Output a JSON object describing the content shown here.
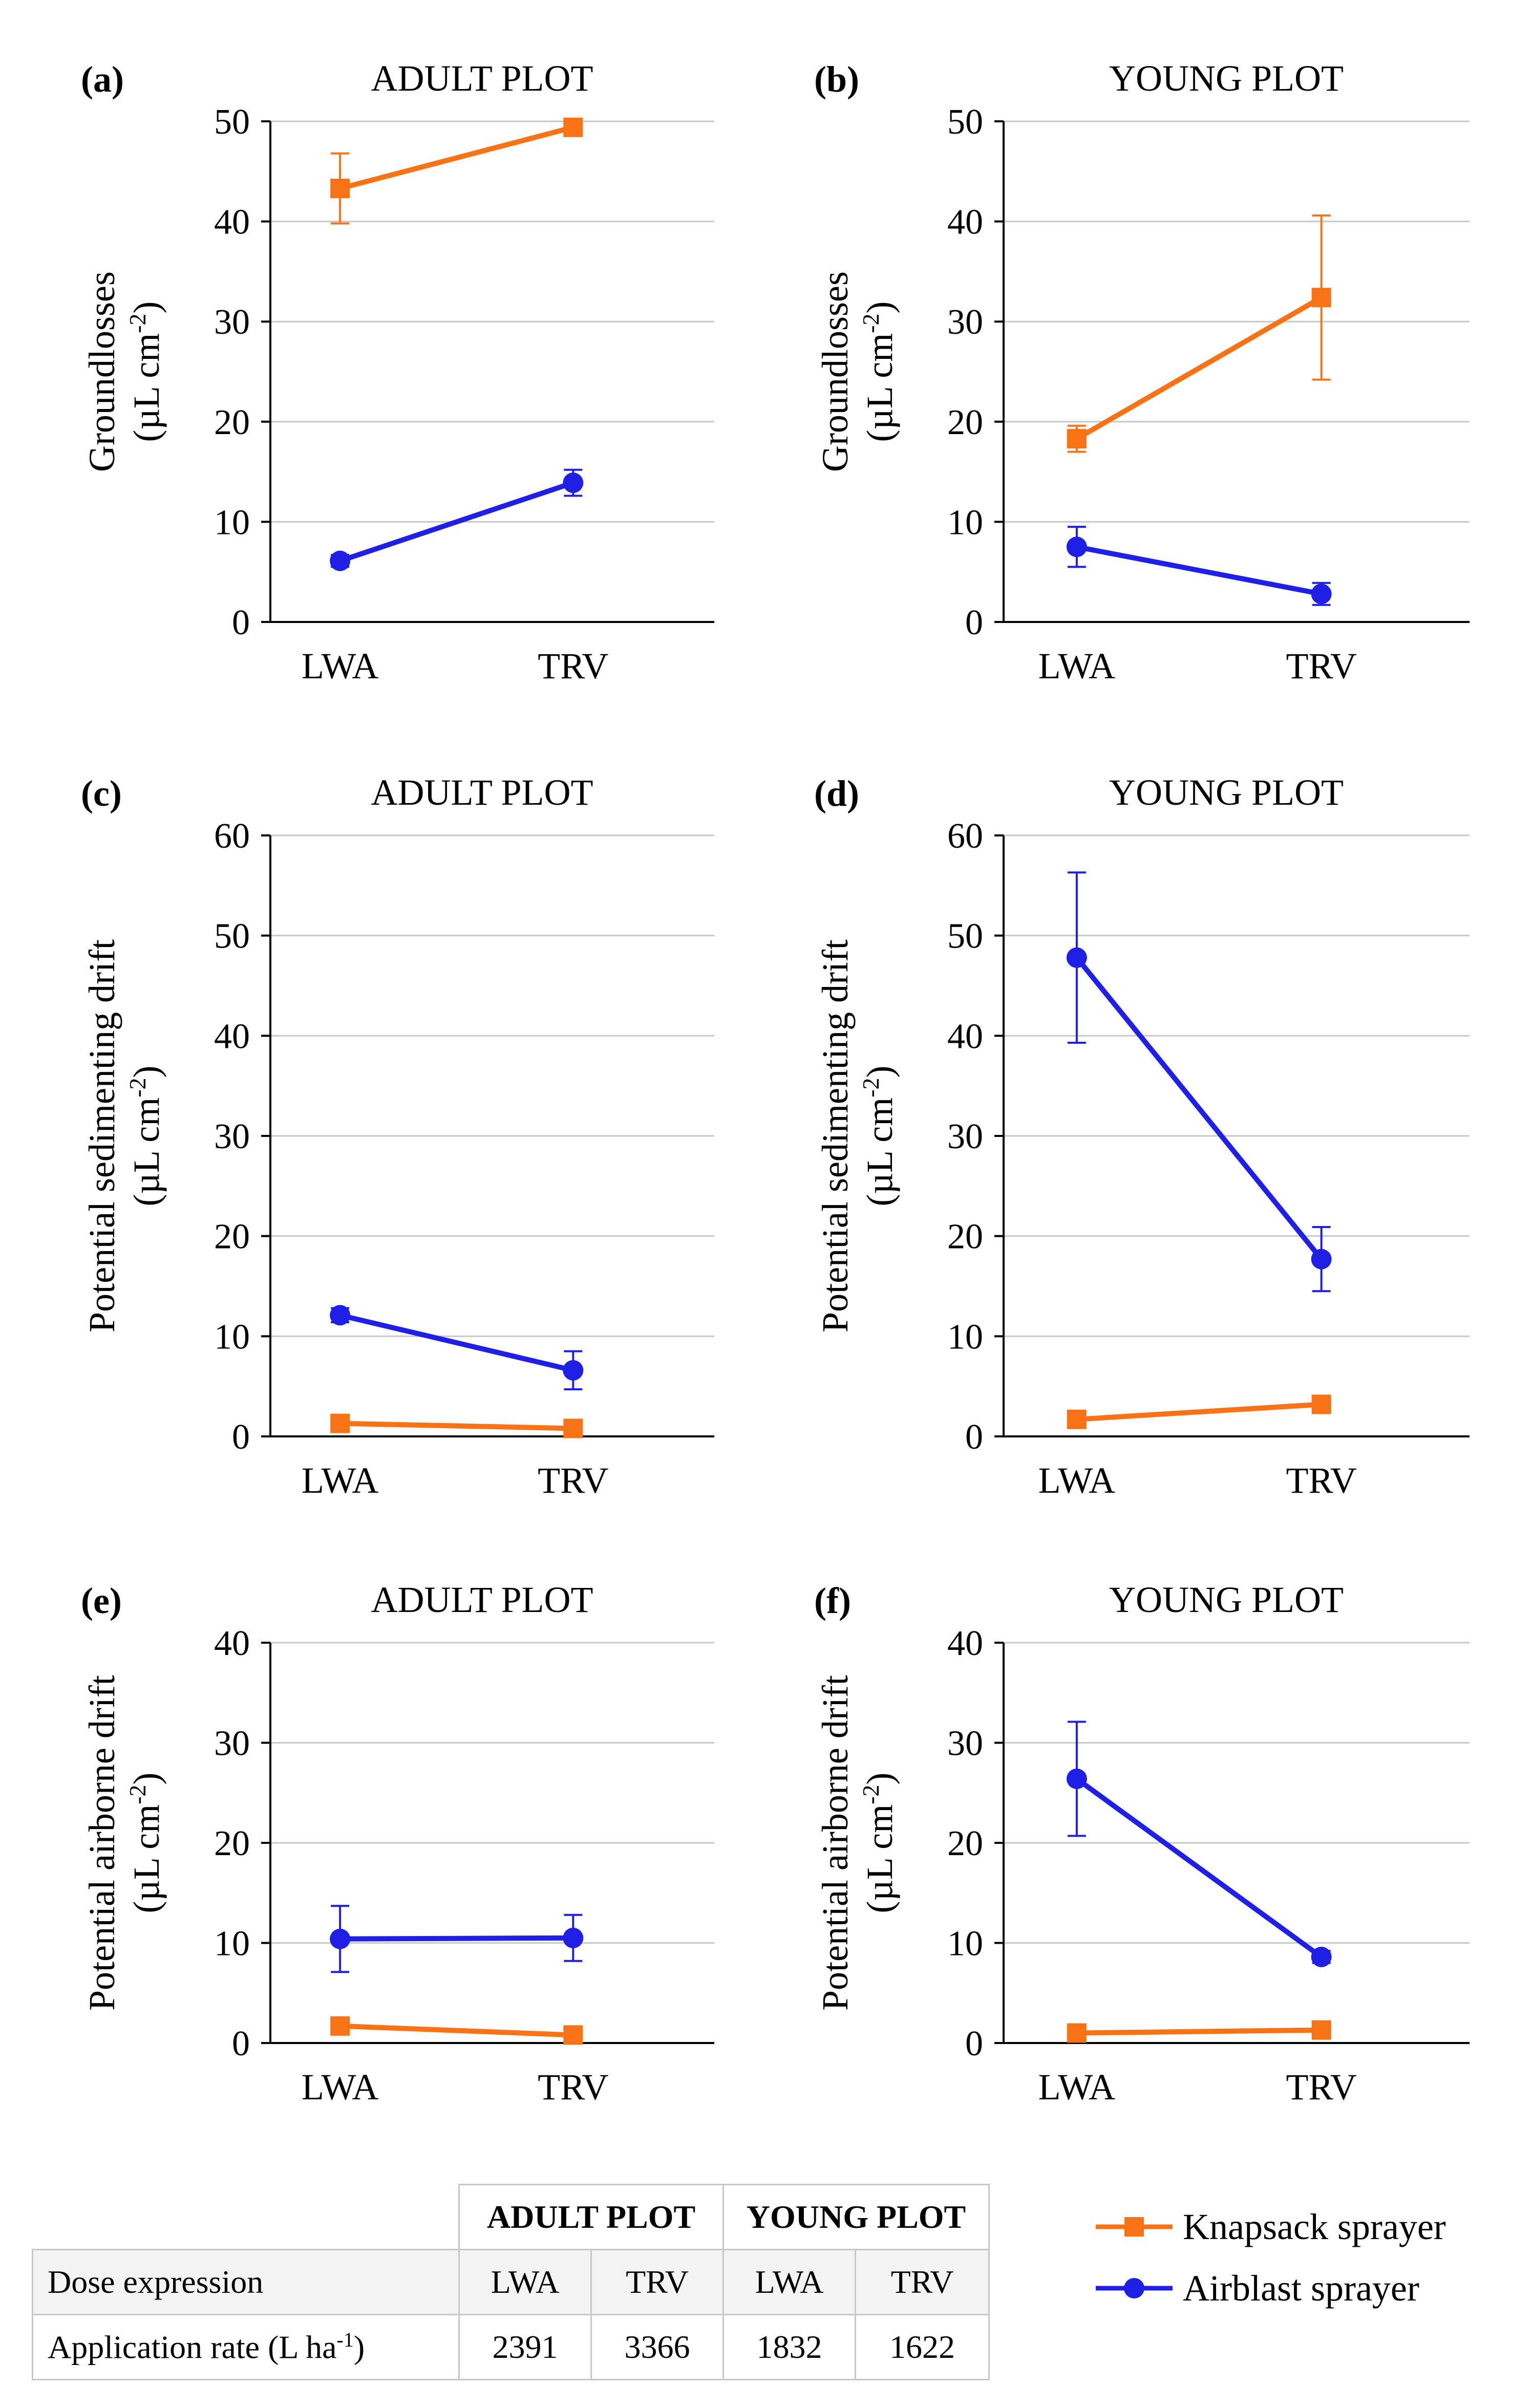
{
  "chart_data": [
    {
      "type": "line",
      "panel": "(a)",
      "title": "ADULT PLOT",
      "ylabel_line1": "Groundlosses",
      "ylabel_line2": "(µL cm",
      "ylabel_sup": "-2",
      "ylabel_tail": ")",
      "categories": [
        "LWA",
        "TRV"
      ],
      "ylim": [
        0,
        50
      ],
      "yticks": [
        0,
        10,
        20,
        30,
        40,
        50
      ],
      "series": [
        {
          "name": "Knapsack sprayer",
          "values": [
            43.3,
            49.4
          ],
          "errors": [
            3.5,
            0.3
          ]
        },
        {
          "name": "Airblast sprayer",
          "values": [
            6.1,
            13.9
          ],
          "errors": [
            0.6,
            1.3
          ]
        }
      ]
    },
    {
      "type": "line",
      "panel": "(b)",
      "title": "YOUNG PLOT",
      "ylabel_line1": "Groundlosses",
      "ylabel_line2": "(µL cm",
      "ylabel_sup": "-2",
      "ylabel_tail": ")",
      "categories": [
        "LWA",
        "TRV"
      ],
      "ylim": [
        0,
        50
      ],
      "yticks": [
        0,
        10,
        20,
        30,
        40,
        50
      ],
      "series": [
        {
          "name": "Knapsack sprayer",
          "values": [
            18.3,
            32.4
          ],
          "errors": [
            1.3,
            8.2
          ]
        },
        {
          "name": "Airblast sprayer",
          "values": [
            7.5,
            2.8
          ],
          "errors": [
            2.0,
            1.1
          ]
        }
      ]
    },
    {
      "type": "line",
      "panel": "(c)",
      "title": "ADULT PLOT",
      "ylabel_line1": "Potential sedimenting drift",
      "ylabel_line2": "(µL cm",
      "ylabel_sup": "-2",
      "ylabel_tail": ")",
      "categories": [
        "LWA",
        "TRV"
      ],
      "ylim": [
        0,
        60
      ],
      "yticks": [
        0,
        10,
        20,
        30,
        40,
        50,
        60
      ],
      "series": [
        {
          "name": "Knapsack sprayer",
          "values": [
            1.3,
            0.8
          ],
          "errors": [
            0.3,
            0.2
          ]
        },
        {
          "name": "Airblast sprayer",
          "values": [
            12.1,
            6.6
          ],
          "errors": [
            0.7,
            1.9
          ]
        }
      ]
    },
    {
      "type": "line",
      "panel": "(d)",
      "title": "YOUNG PLOT",
      "ylabel_line1": "Potential sedimenting drift",
      "ylabel_line2": "(µL cm",
      "ylabel_sup": "-2",
      "ylabel_tail": ")",
      "categories": [
        "LWA",
        "TRV"
      ],
      "ylim": [
        0,
        60
      ],
      "yticks": [
        0,
        10,
        20,
        30,
        40,
        50,
        60
      ],
      "series": [
        {
          "name": "Knapsack sprayer",
          "values": [
            1.7,
            3.2
          ],
          "errors": [
            0.3,
            0.3
          ]
        },
        {
          "name": "Airblast sprayer",
          "values": [
            47.8,
            17.7
          ],
          "errors": [
            8.5,
            3.2
          ]
        }
      ]
    },
    {
      "type": "line",
      "panel": "(e)",
      "title": "ADULT PLOT",
      "ylabel_line1": "Potential airborne drift",
      "ylabel_line2": "(µL cm",
      "ylabel_sup": "-2",
      "ylabel_tail": ")",
      "categories": [
        "LWA",
        "TRV"
      ],
      "ylim": [
        0,
        40
      ],
      "yticks": [
        0,
        10,
        20,
        30,
        40
      ],
      "series": [
        {
          "name": "Knapsack sprayer",
          "values": [
            1.7,
            0.8
          ],
          "errors": [
            0.2,
            0.2
          ]
        },
        {
          "name": "Airblast sprayer",
          "values": [
            10.4,
            10.5
          ],
          "errors": [
            3.3,
            2.3
          ]
        }
      ]
    },
    {
      "type": "line",
      "panel": "(f)",
      "title": "YOUNG PLOT",
      "ylabel_line1": "Potential airborne drift",
      "ylabel_line2": "(µL cm",
      "ylabel_sup": "-2",
      "ylabel_tail": ")",
      "categories": [
        "LWA",
        "TRV"
      ],
      "ylim": [
        0,
        40
      ],
      "yticks": [
        0,
        10,
        20,
        30,
        40
      ],
      "series": [
        {
          "name": "Knapsack sprayer",
          "values": [
            1.0,
            1.3
          ],
          "errors": [
            0.2,
            0.2
          ]
        },
        {
          "name": "Airblast sprayer",
          "values": [
            26.4,
            8.6
          ],
          "errors": [
            5.7,
            0.6
          ]
        }
      ]
    }
  ],
  "colors": {
    "knapsack": "#f97316",
    "airblast": "#1f1fe6",
    "grid": "#c8c8c8"
  },
  "legend": [
    {
      "label": "Knapsack sprayer",
      "marker": "square"
    },
    {
      "label": "Airblast sprayer",
      "marker": "circle"
    }
  ],
  "table": {
    "header": {
      "adult": "ADULT PLOT",
      "young": "YOUNG PLOT"
    },
    "rows": [
      {
        "label": "Dose expression",
        "cells": [
          "LWA",
          "TRV",
          "LWA",
          "TRV"
        ]
      },
      {
        "label": "Application rate (L ha",
        "label_sup": "-1",
        "label_tail": ")",
        "cells": [
          "2391",
          "3366",
          "1832",
          "1622"
        ]
      }
    ]
  }
}
